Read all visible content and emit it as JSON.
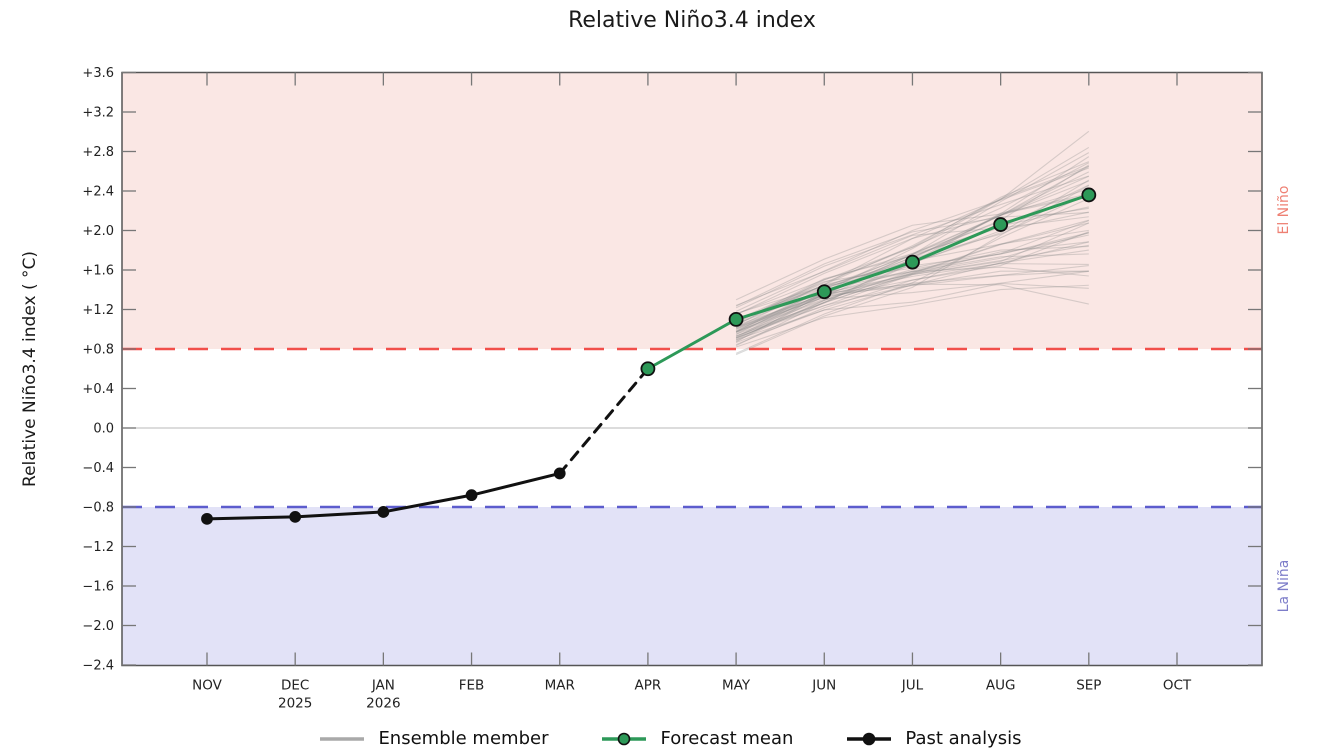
{
  "title": "Relative Niño3.4 index",
  "ylabel": "Relative Niño3.4 index ( °C)",
  "region_labels": {
    "el_nino": "El Niño",
    "la_nina": "La Niña"
  },
  "legend": [
    {
      "label": "Ensemble member",
      "swatch": "line",
      "color": "#a9a9a9"
    },
    {
      "label": "Forecast mean",
      "swatch": "line-marker",
      "color": "#2d9958"
    },
    {
      "label": "Past analysis",
      "swatch": "line-marker",
      "color": "#111111"
    }
  ],
  "colors": {
    "el_nino_band": "#fae7e4",
    "la_nina_band": "#e2e2f7",
    "el_nino_line": "#f14f4a",
    "la_nina_line": "#5c5ccd",
    "el_nino_text": "#ee8073",
    "la_nina_text": "#7d7dc9",
    "ensemble": "#8c8c8c",
    "zero_line": "#c8c8c8",
    "frame": "#555555",
    "tick": "#777777",
    "tick_label": "#222222"
  },
  "chart_data": {
    "type": "line",
    "title": "Relative Niño3.4 index",
    "ylabel": "Relative Niño3.4 index ( °C)",
    "x_categories": [
      "NOV",
      "DEC",
      "JAN",
      "FEB",
      "MAR",
      "APR",
      "MAY",
      "JUN",
      "JUL",
      "AUG",
      "SEP",
      "OCT"
    ],
    "x_year_labels": [
      {
        "month": "DEC",
        "year": "2025"
      },
      {
        "month": "JAN",
        "year": "2026"
      }
    ],
    "ylim": [
      -2.4,
      3.6
    ],
    "ytick_step": 0.4,
    "grid": "zero-line-only",
    "legend_position": "bottom-center",
    "thresholds": {
      "el_nino": 0.8,
      "la_nina": -0.8
    },
    "series": [
      {
        "name": "Past analysis",
        "x": [
          "NOV",
          "DEC",
          "JAN",
          "FEB",
          "MAR"
        ],
        "values": [
          -0.92,
          -0.9,
          -0.85,
          -0.68,
          -0.46
        ],
        "color": "#111111",
        "width": 3,
        "dash": null,
        "marker_r": 5,
        "marker_edge": "#111111"
      },
      {
        "name": "Analysis to forecast transition",
        "x": [
          "MAR",
          "APR"
        ],
        "values": [
          -0.46,
          0.6
        ],
        "color": "#111111",
        "width": 3,
        "dash": "10 8",
        "marker_r": 0,
        "marker_edge": null
      },
      {
        "name": "Forecast mean",
        "x": [
          "APR",
          "MAY",
          "JUN",
          "JUL",
          "AUG",
          "SEP"
        ],
        "values": [
          0.6,
          1.1,
          1.38,
          1.68,
          2.06,
          2.36
        ],
        "color": "#2d9958",
        "width": 3,
        "dash": null,
        "marker_r": 6.5,
        "marker_edge": "#111111"
      }
    ],
    "ensemble": {
      "name": "Ensemble member",
      "x": [
        "MAY",
        "JUN",
        "JUL",
        "AUG",
        "SEP"
      ],
      "count": 51,
      "min": [
        0.72,
        0.95,
        1.05,
        1.15,
        1.25
      ],
      "max": [
        1.32,
        1.85,
        2.35,
        2.8,
        3.2
      ],
      "opacity": 0.32,
      "width": 1.1
    }
  }
}
